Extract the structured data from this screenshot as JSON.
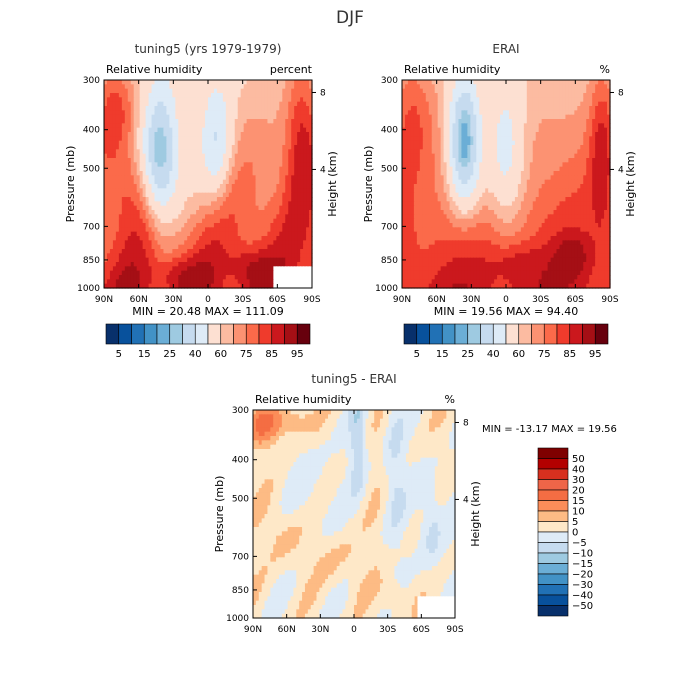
{
  "page_title": "DJF",
  "chart_data": [
    {
      "type": "heatmap",
      "title": "tuning5 (yrs 1979-1979)",
      "subtitle_left": "Relative humidity",
      "subtitle_right": "percent",
      "ylabel": "Pressure (mb)",
      "ylabel_right": "Height (km)",
      "x_ticks": [
        "90N",
        "60N",
        "30N",
        "0",
        "30S",
        "60S",
        "90S"
      ],
      "y_ticks": [
        "300",
        "400",
        "500",
        "700",
        "850",
        "1000"
      ],
      "y_right_ticks": [
        "8",
        "4"
      ],
      "stats_text": "MIN =   20.48   MAX =  111.09",
      "colorbar": {
        "levels": [
          "5",
          "15",
          "25",
          "40",
          "60",
          "75",
          "85",
          "95"
        ],
        "colors": [
          "#08306b",
          "#08519c",
          "#2171b5",
          "#4292c6",
          "#6baed6",
          "#9ecae1",
          "#c6dbef",
          "#deebf7",
          "#fde0d2",
          "#fcbba1",
          "#fc9272",
          "#fb6a4a",
          "#ef3b2c",
          "#cb181d",
          "#a50f15",
          "#67000d"
        ]
      }
    },
    {
      "type": "heatmap",
      "title": "ERAI",
      "subtitle_left": "Relative humidity",
      "subtitle_right": "%",
      "ylabel": "Pressure (mb)",
      "ylabel_right": "Height (km)",
      "x_ticks": [
        "90N",
        "60N",
        "30N",
        "0",
        "30S",
        "60S",
        "90S"
      ],
      "y_ticks": [
        "300",
        "400",
        "500",
        "700",
        "850",
        "1000"
      ],
      "y_right_ticks": [
        "8",
        "4"
      ],
      "stats_text": "MIN =   19.56   MAX =   94.40",
      "colorbar": {
        "levels": [
          "5",
          "15",
          "25",
          "40",
          "60",
          "75",
          "85",
          "95"
        ],
        "colors": [
          "#08306b",
          "#08519c",
          "#2171b5",
          "#4292c6",
          "#6baed6",
          "#9ecae1",
          "#c6dbef",
          "#deebf7",
          "#fde0d2",
          "#fcbba1",
          "#fc9272",
          "#fb6a4a",
          "#ef3b2c",
          "#cb181d",
          "#a50f15",
          "#67000d"
        ]
      }
    },
    {
      "type": "heatmap",
      "title": "tuning5 - ERAI",
      "subtitle_left": "Relative humidity",
      "subtitle_right": "%",
      "ylabel": "Pressure (mb)",
      "ylabel_right": "Height (km)",
      "x_ticks": [
        "90N",
        "60N",
        "30N",
        "0",
        "30S",
        "60S",
        "90S"
      ],
      "y_ticks": [
        "300",
        "400",
        "500",
        "700",
        "850",
        "1000"
      ],
      "y_right_ticks": [
        "8",
        "4"
      ],
      "stats_text": "MIN = -13.17   MAX =  19.56",
      "colorbar": {
        "levels": [
          "50",
          "40",
          "30",
          "20",
          "15",
          "10",
          "5",
          "0",
          "−5",
          "−10",
          "−15",
          "−20",
          "−30",
          "−40",
          "−50"
        ],
        "colors": [
          "#7f0000",
          "#b30000",
          "#d7301f",
          "#ef6548",
          "#f46d43",
          "#fc8d59",
          "#fdbb84",
          "#fee8c8",
          "#deebf7",
          "#c6dbef",
          "#9ecae1",
          "#6baed6",
          "#4292c6",
          "#2171b5",
          "#08519c",
          "#08306b"
        ]
      }
    }
  ]
}
